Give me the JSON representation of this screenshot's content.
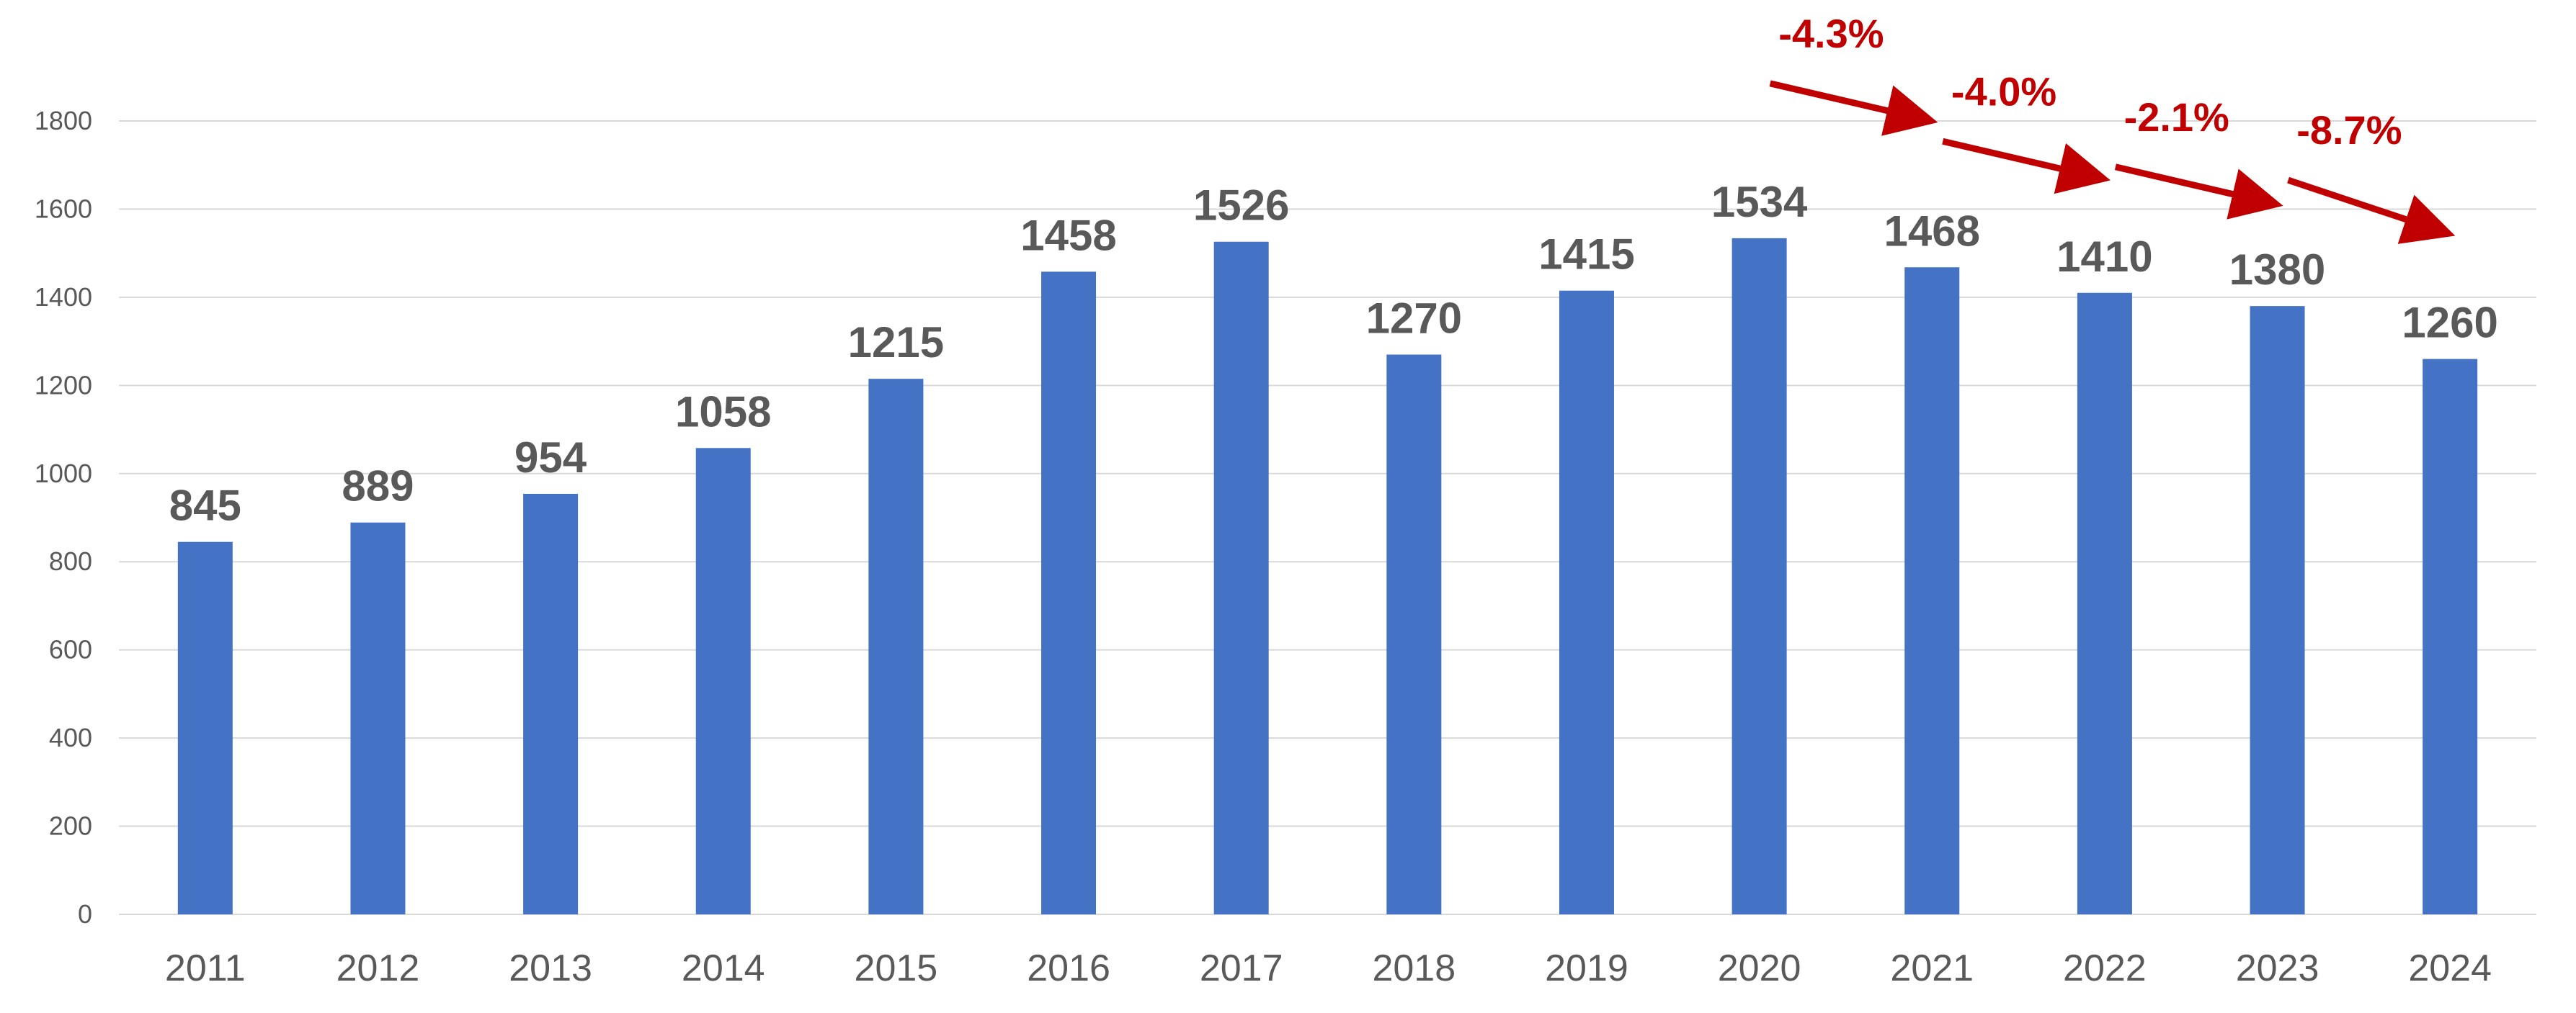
{
  "chart_data": {
    "type": "bar",
    "categories": [
      "2011",
      "2012",
      "2013",
      "2014",
      "2015",
      "2016",
      "2017",
      "2018",
      "2019",
      "2020",
      "2021",
      "2022",
      "2023",
      "2024"
    ],
    "values": [
      845,
      889,
      954,
      1058,
      1215,
      1458,
      1526,
      1270,
      1415,
      1534,
      1468,
      1410,
      1380,
      1260
    ],
    "data_labels": [
      "845",
      "889",
      "954",
      "1058",
      "1215",
      "1458",
      "1526",
      "1270",
      "1415",
      "1534",
      "1468",
      "1410",
      "1380",
      "1260"
    ],
    "title": "",
    "xlabel": "",
    "ylabel": "",
    "ylim": [
      0,
      1800
    ],
    "yticks": [
      "0",
      "200",
      "400",
      "600",
      "800",
      "1000",
      "1200",
      "1400",
      "1600",
      "1800"
    ],
    "grid": true,
    "legend": "none",
    "colors": {
      "bar": "#4472c4",
      "annotation": "#c00000",
      "text": "#595959",
      "grid": "#d9d9d9"
    },
    "annotations": [
      {
        "text": "-4.3%",
        "from": "2020",
        "to": "2021"
      },
      {
        "text": "-4.0%",
        "from": "2021",
        "to": "2022"
      },
      {
        "text": "-2.1%",
        "from": "2022",
        "to": "2023"
      },
      {
        "text": "-8.7%",
        "from": "2023",
        "to": "2024"
      }
    ]
  }
}
